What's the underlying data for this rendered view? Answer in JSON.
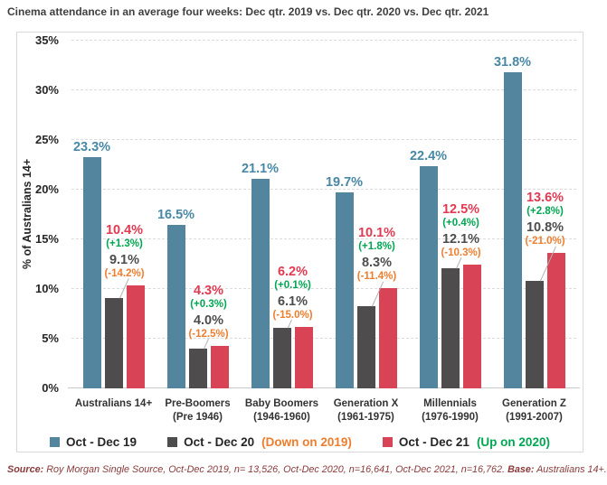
{
  "title": "Cinema attendance in an average four weeks: Dec qtr. 2019 vs. Dec qtr. 2020 vs. Dec qtr. 2021",
  "chart_data": {
    "type": "bar",
    "title": "Cinema attendance in an average four weeks: Dec qtr. 2019 vs. Dec qtr. 2020 vs. Dec qtr. 2021",
    "ylabel": "% of Australians 14+",
    "ylim": [
      0,
      35
    ],
    "ytick_values": [
      0,
      5,
      10,
      15,
      20,
      25,
      30,
      35
    ],
    "ytick_suffix": "%",
    "grid": "horizontal-dashed",
    "legend_position": "bottom",
    "categories": [
      {
        "label": "Australians 14+",
        "sublabel": ""
      },
      {
        "label": "Pre-Boomers",
        "sublabel": "(Pre 1946)"
      },
      {
        "label": "Baby Boomers",
        "sublabel": "(1946-1960)"
      },
      {
        "label": "Generation X",
        "sublabel": "(1961-1975)"
      },
      {
        "label": "Millennials",
        "sublabel": "(1976-1990)"
      },
      {
        "label": "Generation Z",
        "sublabel": "(1991-2007)"
      }
    ],
    "series": [
      {
        "name": "Oct - Dec 19",
        "color": "#53869e",
        "label_color": "#4888a6",
        "values": [
          23.3,
          16.5,
          21.1,
          19.7,
          22.4,
          31.8
        ],
        "value_labels": [
          "23.3%",
          "16.5%",
          "21.1%",
          "19.7%",
          "22.4%",
          "31.8%"
        ]
      },
      {
        "name": "Oct - Dec 20",
        "color": "#4f4c4d",
        "label_color": "#4d4d4d",
        "values": [
          9.1,
          4.0,
          6.1,
          8.3,
          12.1,
          10.8
        ],
        "value_labels": [
          "9.1%",
          "4.0%",
          "6.1%",
          "8.3%",
          "12.1%",
          "10.8%"
        ],
        "deltas": [
          "(-14.2%)",
          "(-12.5%)",
          "(-15.0%)",
          "(-11.4%)",
          "(-10.3%)",
          "(-21.0%)"
        ],
        "delta_color": "#ee7d2e",
        "legend_note": "(Down on 2019)"
      },
      {
        "name": "Oct - Dec 21",
        "color": "#d94356",
        "label_color": "#e13a52",
        "values": [
          10.4,
          4.3,
          6.2,
          10.1,
          12.5,
          13.6
        ],
        "value_labels": [
          "10.4%",
          "4.3%",
          "6.2%",
          "10.1%",
          "12.5%",
          "13.6%"
        ],
        "deltas": [
          "(+1.3%)",
          "(+0.3%)",
          "(+0.1%)",
          "(+1.8%)",
          "(+0.4%)",
          "(+2.8%)"
        ],
        "delta_color": "#00a651",
        "legend_note": "(Up on 2020)"
      }
    ]
  },
  "source": {
    "label": "Source:",
    "text": " Roy Morgan Single Source, Oct-Dec 2019, n= 13,526, Oct-Dec 2020, n=16,641, Oct-Dec 2021, n=16,762. ",
    "base_label": "Base:",
    "base_text": " Australians 14+."
  }
}
